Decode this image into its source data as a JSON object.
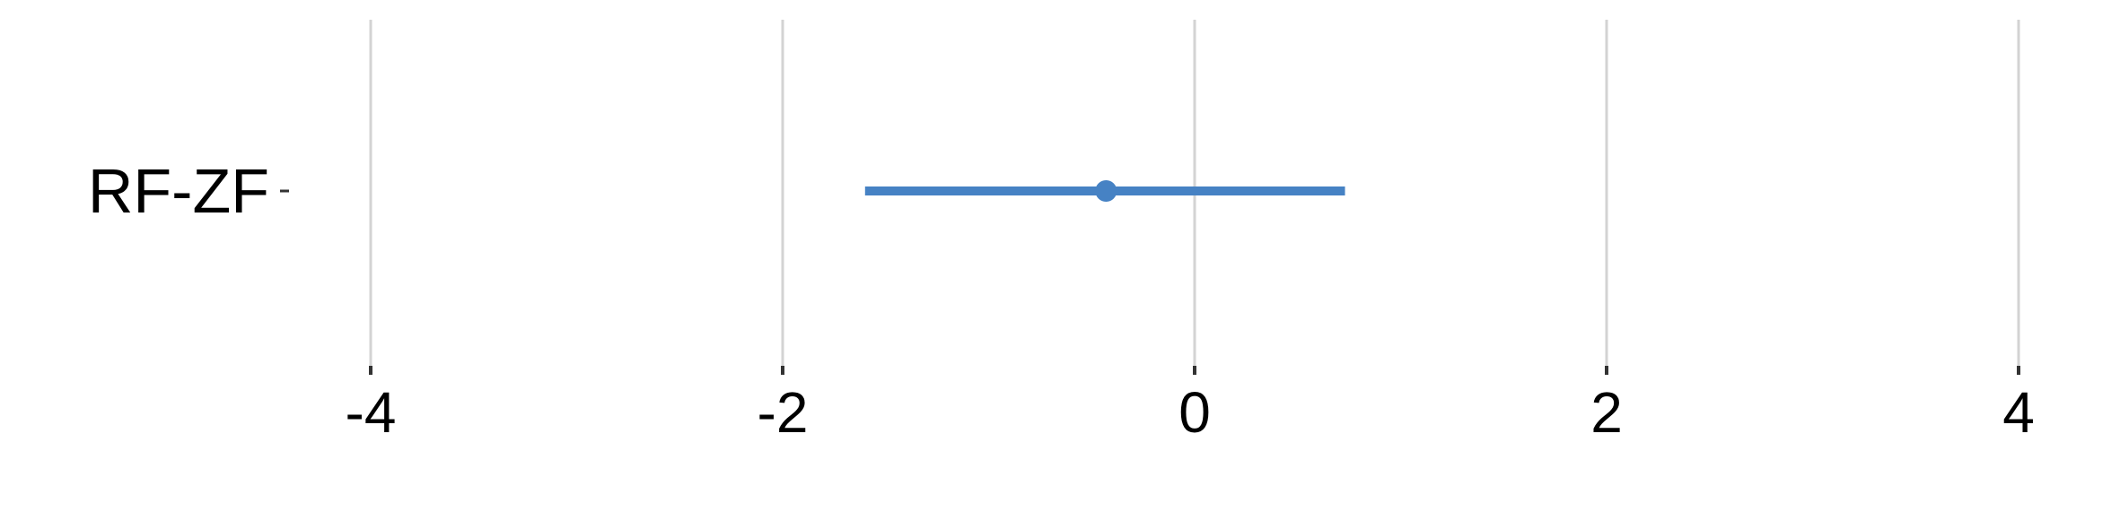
{
  "chart_data": {
    "type": "forest",
    "title": "",
    "xlabel": "",
    "ylabel": "",
    "xlim": [
      -5.8,
      4.2
    ],
    "x_ticks": [
      -4,
      -2,
      0,
      2,
      4
    ],
    "x_tick_labels": [
      "-4",
      "-2",
      "0",
      "2",
      "4"
    ],
    "grid": "vertical",
    "categories": [
      "RF-ZF"
    ],
    "estimates": [
      {
        "label": "RF-ZF",
        "estimate": -0.43,
        "lower": -1.6,
        "upper": 0.73
      }
    ]
  },
  "colors": {
    "point": "#4682c4",
    "interval": "#4682c4",
    "grid": "#d3d3d3",
    "axis_ticks": "#333333",
    "text": "#000000"
  }
}
